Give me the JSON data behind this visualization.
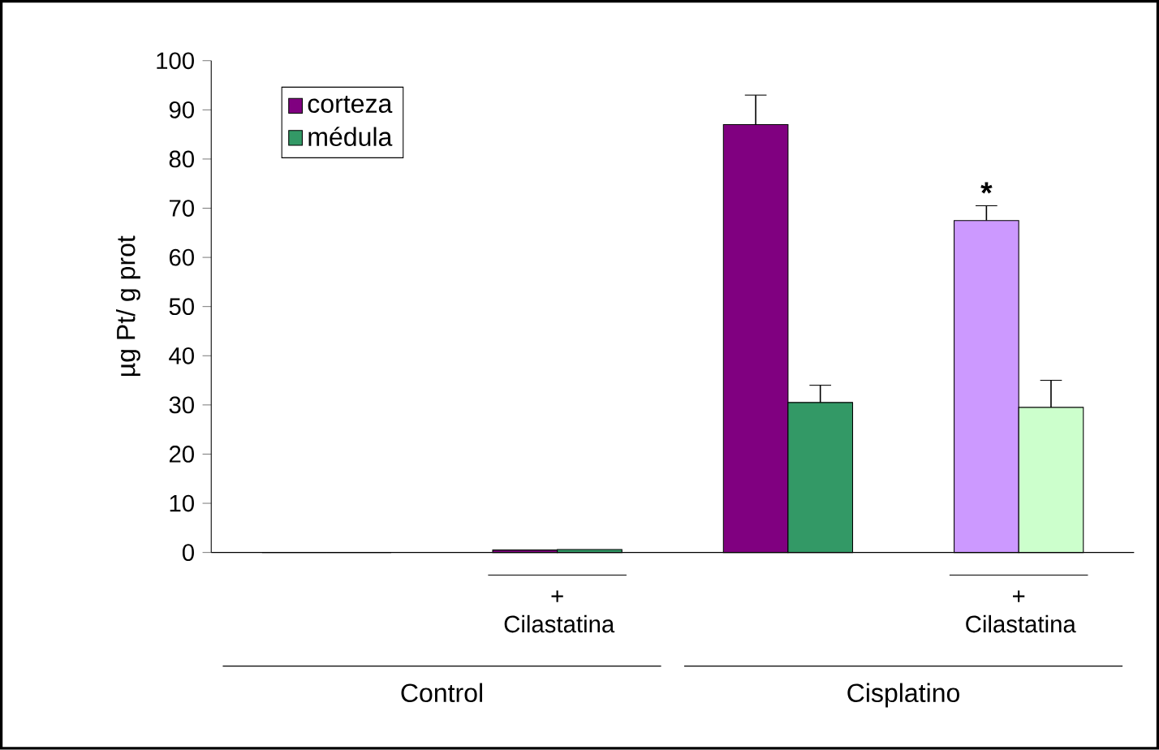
{
  "chart_data": {
    "type": "bar",
    "ylabel": "µg Pt/ g prot",
    "categories": [
      null,
      "+ Cilastatina",
      null,
      "+ Cilastatina"
    ],
    "series": [
      {
        "name": "corteza",
        "colors": [
          "#800080",
          "#800080",
          "#800080",
          "#cc99ff"
        ],
        "values": [
          0,
          0.5,
          87,
          67.5
        ],
        "errors": [
          null,
          null,
          6,
          3
        ]
      },
      {
        "name": "médula",
        "colors": [
          "#339966",
          "#339966",
          "#339966",
          "#ccffcc"
        ],
        "values": [
          0,
          0.6,
          30.5,
          29.5
        ],
        "errors": [
          null,
          null,
          3.5,
          5.5
        ]
      }
    ],
    "ylim": [
      0,
      100
    ],
    "yticks": [
      0,
      10,
      20,
      30,
      40,
      50,
      60,
      70,
      80,
      90,
      100
    ],
    "legend": "top left",
    "grid": false,
    "annotations": [
      "*",
      "Control",
      "Cisplatino"
    ]
  }
}
